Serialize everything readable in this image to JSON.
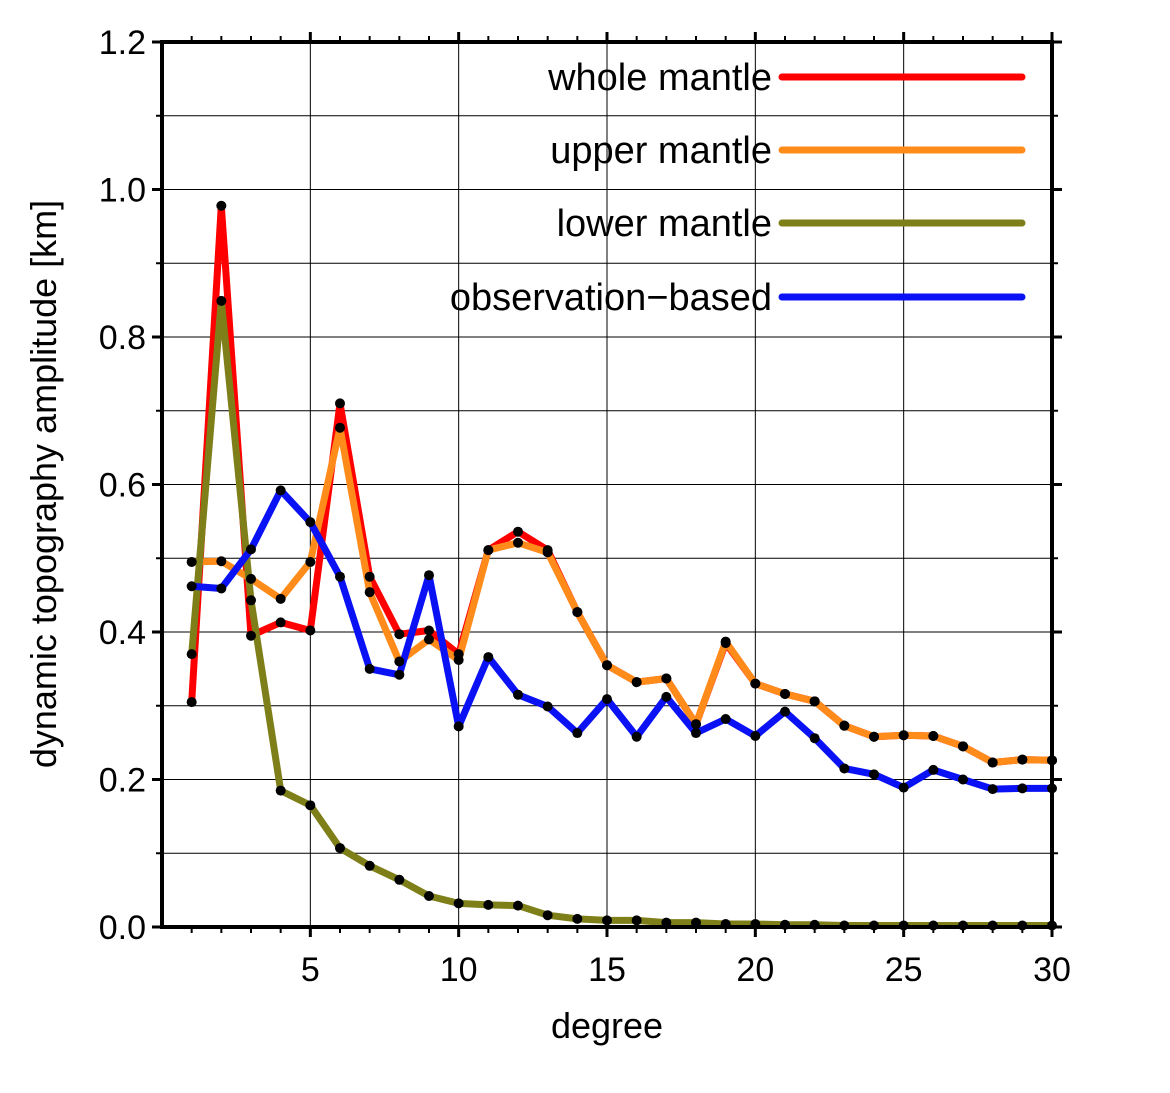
{
  "chart_data": {
    "type": "line",
    "title": "",
    "xlabel": "degree",
    "ylabel": "dynamic topography amplitude [km]",
    "xlim": [
      0.0,
      30.0
    ],
    "ylim": [
      0.0,
      1.2
    ],
    "xticks": [
      5,
      10,
      15,
      20,
      25,
      30
    ],
    "xtick_labels": [
      "5",
      "10",
      "15",
      "20",
      "25",
      "30"
    ],
    "yticks": [
      0.0,
      0.2,
      0.4,
      0.6,
      0.8,
      1.0,
      1.2
    ],
    "ytick_labels": [
      "0.0",
      "0.2",
      "0.4",
      "0.6",
      "0.8",
      "1.0",
      "1.2"
    ],
    "grid": true,
    "legend_position": "top-right",
    "marker_color": "#000000",
    "x": [
      1,
      2,
      3,
      4,
      5,
      6,
      7,
      8,
      9,
      10,
      11,
      12,
      13,
      14,
      15,
      16,
      17,
      18,
      19,
      20,
      21,
      22,
      23,
      24,
      25,
      26,
      27,
      28,
      29,
      30
    ],
    "series": [
      {
        "name": "whole mantle",
        "color": "#ff0000",
        "values": [
          0.305,
          0.978,
          0.395,
          0.413,
          0.402,
          0.71,
          0.475,
          0.397,
          0.402,
          0.37,
          0.511,
          0.536,
          0.511,
          0.427,
          0.355,
          0.332,
          0.337,
          0.275,
          0.385,
          0.33,
          0.316,
          0.306,
          0.273,
          0.258,
          0.26,
          0.259,
          0.245,
          0.223,
          0.227,
          0.226
        ]
      },
      {
        "name": "upper mantle",
        "color": "#ff8c1a",
        "values": [
          0.495,
          0.496,
          0.472,
          0.445,
          0.495,
          0.677,
          0.454,
          0.36,
          0.39,
          0.362,
          0.511,
          0.521,
          0.508,
          0.427,
          0.355,
          0.332,
          0.337,
          0.275,
          0.387,
          0.33,
          0.316,
          0.306,
          0.273,
          0.258,
          0.26,
          0.259,
          0.245,
          0.223,
          0.227,
          0.226
        ]
      },
      {
        "name": "lower mantle",
        "color": "#7f7f1a",
        "values": [
          0.37,
          0.849,
          0.443,
          0.185,
          0.165,
          0.107,
          0.083,
          0.064,
          0.042,
          0.032,
          0.03,
          0.029,
          0.016,
          0.011,
          0.009,
          0.009,
          0.006,
          0.006,
          0.004,
          0.004,
          0.003,
          0.003,
          0.002,
          0.002,
          0.002,
          0.002,
          0.002,
          0.002,
          0.002,
          0.002
        ]
      },
      {
        "name": "observation−based",
        "color": "#0a12f5",
        "values": [
          0.462,
          0.459,
          0.512,
          0.592,
          0.549,
          0.475,
          0.35,
          0.342,
          0.477,
          0.272,
          0.366,
          0.315,
          0.299,
          0.263,
          0.309,
          0.258,
          0.312,
          0.263,
          0.282,
          0.259,
          0.292,
          0.256,
          0.215,
          0.207,
          0.189,
          0.213,
          0.2,
          0.187,
          0.188,
          0.188
        ]
      }
    ]
  }
}
